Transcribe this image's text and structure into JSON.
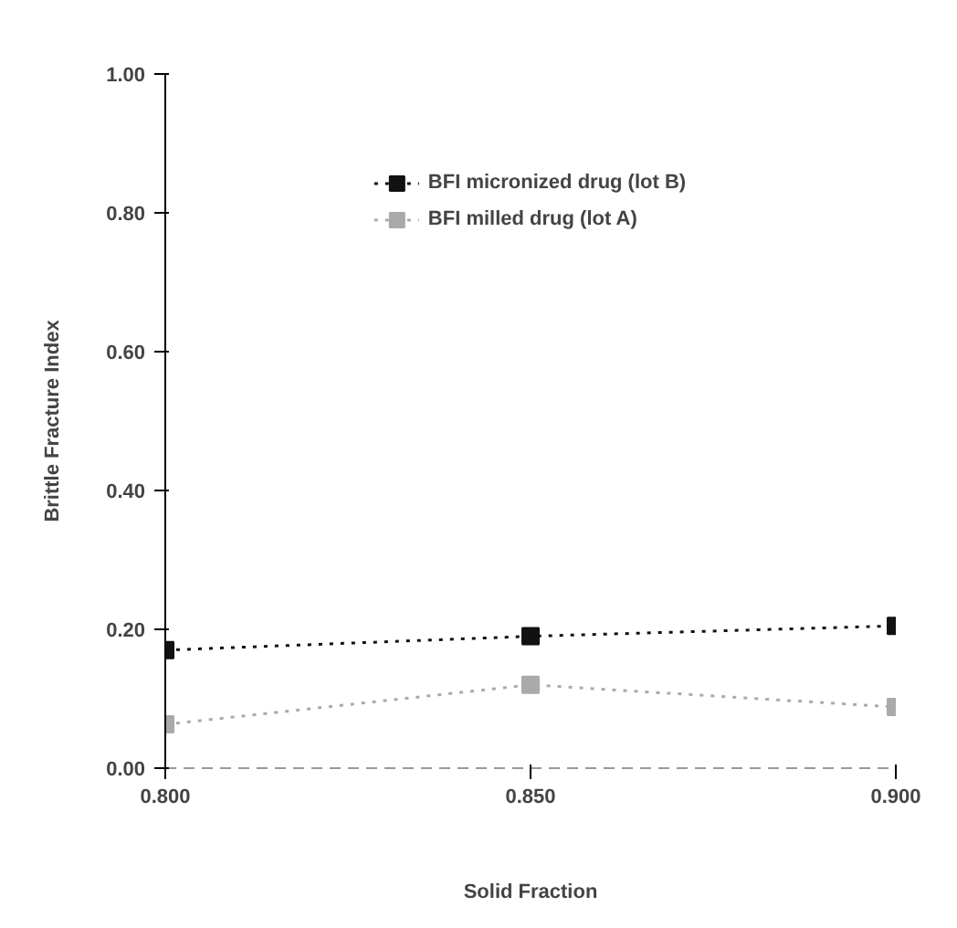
{
  "chart_data": {
    "type": "line",
    "xlabel": "Solid Fraction",
    "ylabel": "Brittle Fracture Index",
    "x": [
      0.8,
      0.85,
      0.9
    ],
    "series": [
      {
        "name": "BFI micronized drug (lot B)",
        "color": "#111111",
        "values": [
          0.17,
          0.19,
          0.205
        ],
        "marker": "square",
        "line_style": "dotted"
      },
      {
        "name": "BFI milled drug (lot A)",
        "color": "#aaaaaa",
        "values": [
          0.063,
          0.12,
          0.088
        ],
        "marker": "square",
        "line_style": "dotted"
      }
    ],
    "xlim": [
      0.8,
      0.9
    ],
    "ylim": [
      0,
      1
    ],
    "xticks": [
      {
        "value": 0.8,
        "label": "0.800"
      },
      {
        "value": 0.85,
        "label": "0.850"
      },
      {
        "value": 0.9,
        "label": "0.900"
      }
    ],
    "yticks": [
      {
        "value": 0,
        "label": "0.00"
      },
      {
        "value": 0.2,
        "label": "0.20"
      },
      {
        "value": 0.4,
        "label": "0.40"
      },
      {
        "value": 0.6,
        "label": "0.60"
      },
      {
        "value": 0.8,
        "label": "0.80"
      },
      {
        "value": 1,
        "label": "1.00"
      }
    ],
    "grid": false,
    "legend": "top"
  }
}
